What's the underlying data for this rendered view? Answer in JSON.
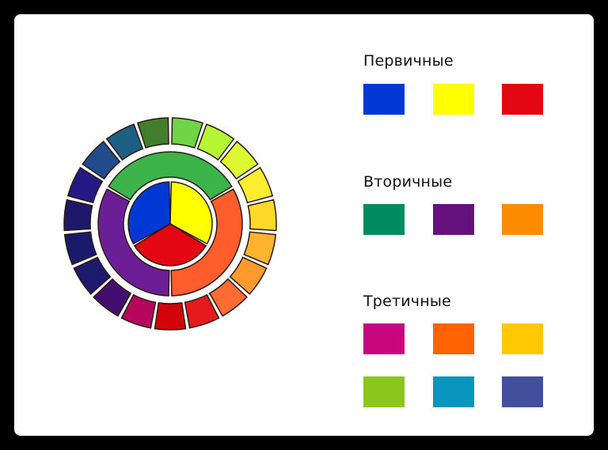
{
  "groups": [
    {
      "title": "Первичные",
      "colors": [
        "#0038d5",
        "#ffff00",
        "#e30613"
      ]
    },
    {
      "title": "Вторичные",
      "colors": [
        "#008c5e",
        "#65127e",
        "#ff8c00"
      ]
    },
    {
      "title": "Третичные",
      "colors": [
        "#c8067d",
        "#ff6200",
        "#ffc800",
        "#8bc61c",
        "#0896bf",
        "#434e9d"
      ]
    }
  ],
  "wheel": {
    "inner": [
      "#0038d5",
      "#ffff00",
      "#e30613"
    ],
    "middle": [
      "#3cb44a",
      "#ff5e2c",
      "#6b1e95"
    ],
    "outer": [
      "#6fd546",
      "#b6f531",
      "#ddf730",
      "#fdec2f",
      "#fed92a",
      "#fdb32d",
      "#ff9a2c",
      "#fe6b34",
      "#e51a1c",
      "#d3030c",
      "#b7045c",
      "#440e70",
      "#1e1a6e",
      "#1a1a6d",
      "#1d186a",
      "#231a83",
      "#214b8d",
      "#1d5f83",
      "#437e2f"
    ]
  }
}
